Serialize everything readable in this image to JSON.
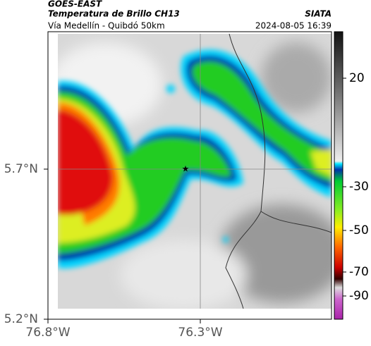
{
  "header": {
    "source": "GOES-EAST",
    "title": "Temperatura de Brillo CH13",
    "org": "SIATA",
    "subtitle": "Vía Medellín - Quibdó 50km",
    "datetime": "2024-08-05 16:39"
  },
  "axes": {
    "y_labels": [
      "5.7°N",
      "5.2°N"
    ],
    "x_labels": [
      "76.8°W",
      "76.3°W"
    ]
  },
  "colorbar": {
    "labels": [
      "20",
      "-30",
      "-50",
      "-70",
      "-90"
    ]
  }
}
